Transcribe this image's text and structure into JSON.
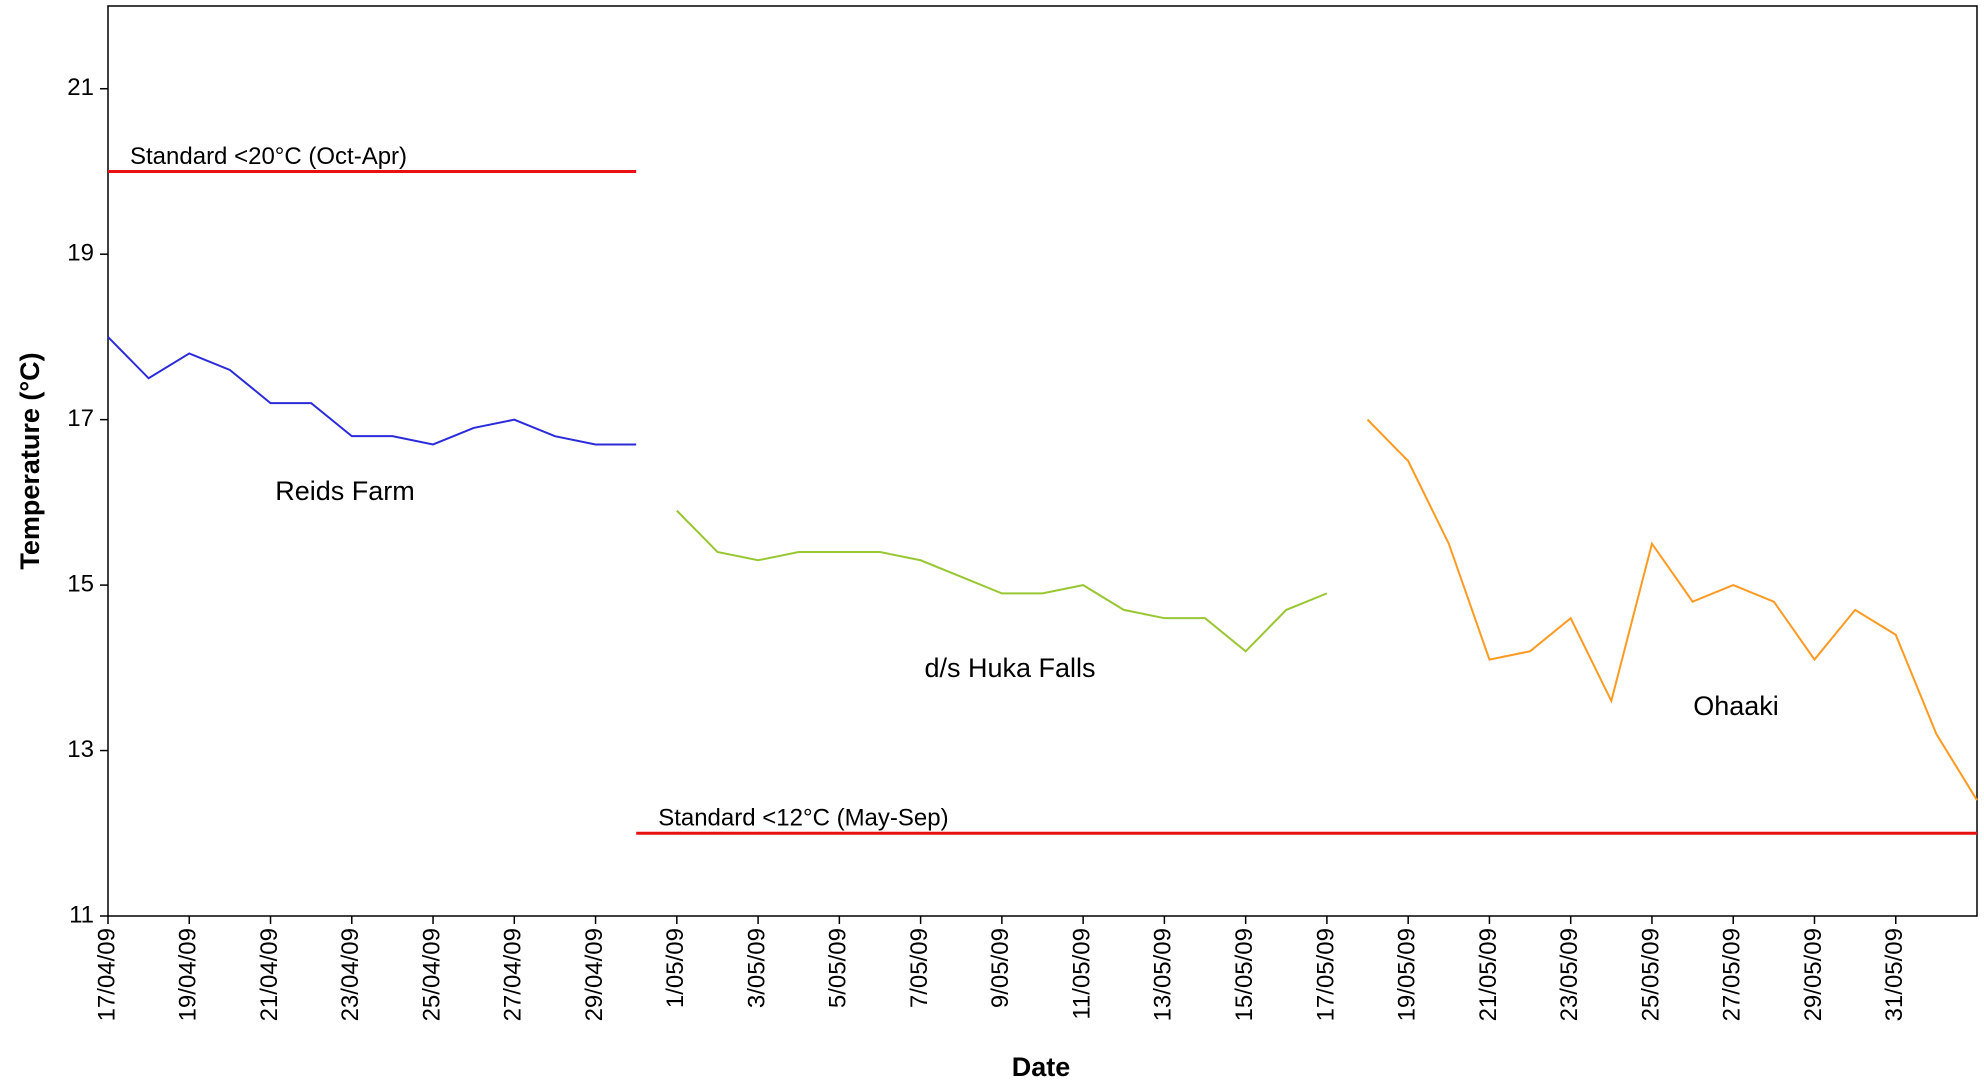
{
  "chart_data": {
    "type": "line",
    "x_label": "Date",
    "y_label": "Temperature (°C)",
    "x": [
      "17/04/09",
      "18/04/09",
      "19/04/09",
      "20/04/09",
      "21/04/09",
      "22/04/09",
      "23/04/09",
      "24/04/09",
      "25/04/09",
      "26/04/09",
      "27/04/09",
      "28/04/09",
      "29/04/09",
      "30/04/09",
      "1/05/09",
      "2/05/09",
      "3/05/09",
      "4/05/09",
      "5/05/09",
      "6/05/09",
      "7/05/09",
      "8/05/09",
      "9/05/09",
      "10/05/09",
      "11/05/09",
      "12/05/09",
      "13/05/09",
      "14/05/09",
      "15/05/09",
      "16/05/09",
      "17/05/09",
      "18/05/09",
      "19/05/09",
      "20/05/09",
      "21/05/09",
      "22/05/09",
      "23/05/09",
      "24/05/09",
      "25/05/09",
      "26/05/09",
      "27/05/09",
      "28/05/09",
      "29/05/09",
      "30/05/09",
      "31/05/09",
      "1/06/09",
      "2/06/09"
    ],
    "series": [
      {
        "name": "Reids Farm",
        "color": "#2b2bd9",
        "values": [
          18.0,
          17.5,
          17.8,
          17.6,
          17.2,
          17.2,
          16.8,
          16.8,
          16.7,
          16.9,
          17.0,
          16.8,
          16.7,
          16.7,
          null,
          null,
          null,
          null,
          null,
          null,
          null,
          null,
          null,
          null,
          null,
          null,
          null,
          null,
          null,
          null,
          null,
          null,
          null,
          null,
          null,
          null,
          null,
          null,
          null,
          null,
          null,
          null,
          null,
          null,
          null,
          null,
          null
        ]
      },
      {
        "name": "d/s Huka Falls",
        "color": "#99c733",
        "values": [
          null,
          null,
          null,
          null,
          null,
          null,
          null,
          null,
          null,
          null,
          null,
          null,
          null,
          null,
          15.9,
          15.4,
          15.3,
          15.4,
          15.4,
          15.4,
          15.3,
          15.1,
          14.9,
          14.9,
          15.0,
          14.7,
          14.6,
          14.6,
          14.2,
          14.7,
          14.9,
          null,
          null,
          null,
          null,
          null,
          null,
          null,
          null,
          null,
          null,
          null,
          null,
          null,
          null,
          null,
          null
        ]
      },
      {
        "name": "Ohaaki",
        "color": "#ff9a22",
        "values": [
          null,
          null,
          null,
          null,
          null,
          null,
          null,
          null,
          null,
          null,
          null,
          null,
          null,
          null,
          null,
          null,
          null,
          null,
          null,
          null,
          null,
          null,
          null,
          null,
          null,
          null,
          null,
          null,
          null,
          null,
          null,
          17.0,
          16.5,
          15.5,
          14.1,
          14.2,
          14.6,
          13.6,
          15.5,
          14.8,
          15.0,
          14.8,
          14.1,
          14.7,
          14.4,
          13.2,
          12.4
        ]
      }
    ],
    "xlim": [
      "17/04/09",
      "2/06/09"
    ],
    "xticks": [
      "17/04/09",
      "19/04/09",
      "21/04/09",
      "23/04/09",
      "25/04/09",
      "27/04/09",
      "29/04/09",
      "1/05/09",
      "3/05/09",
      "5/05/09",
      "7/05/09",
      "9/05/09",
      "11/05/09",
      "13/05/09",
      "15/05/09",
      "17/05/09",
      "19/05/09",
      "21/05/09",
      "23/05/09",
      "25/05/09",
      "27/05/09",
      "29/05/09",
      "31/05/09"
    ],
    "ylim": [
      11,
      22
    ],
    "yticks": [
      11,
      13,
      15,
      17,
      19,
      21
    ],
    "reference_lines": [
      {
        "label": "Standard <20°C (Oct-Apr)",
        "value": 20,
        "x": [
          "17/04/09",
          "30/04/09"
        ],
        "color": "#e81010"
      },
      {
        "label": "Standard <12°C (May-Sep)",
        "value": 12,
        "x": [
          "30/04/09",
          "2/06/09"
        ],
        "color": "#e81010"
      }
    ]
  }
}
